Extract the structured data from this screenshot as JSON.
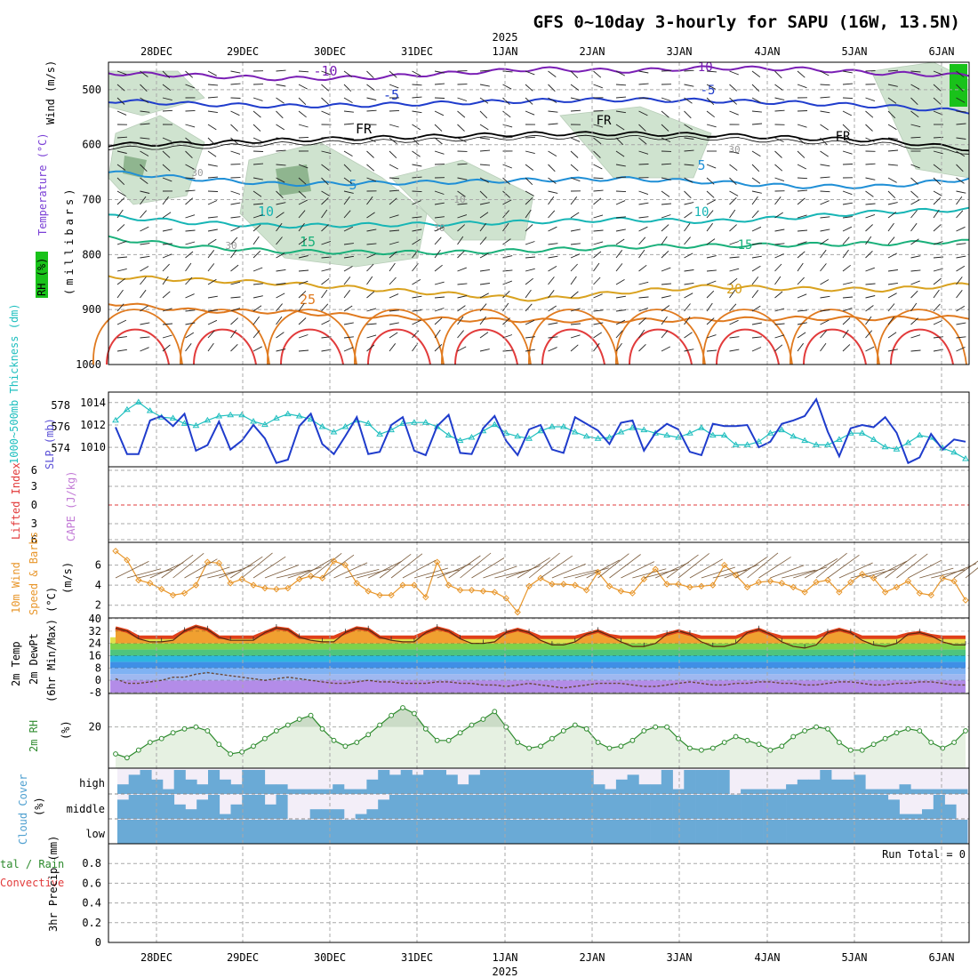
{
  "title": "GFS 0~10day 3-hourly for SAPU (16W, 13.5N)",
  "run_total": "Run Total = 0",
  "colors": {
    "frame": "#000000",
    "grid": "#a8a8a8",
    "rh_fill": "#cfe3cf",
    "rh_dark": "#8fb58f",
    "slp_line": "#1f3ccc",
    "thickness_line": "#1fbfbf",
    "wind_speed": "#e8962a",
    "barb": "#7a5a3a",
    "cape": "#c27ad6",
    "lifted_index": "#e23b3b",
    "rh2m": "#2e8b2e",
    "cloud_fill": "#6aaad6",
    "cloud_bg": "#f3eef8",
    "cloud_mid": "#e6e6e6"
  },
  "time_axis": {
    "top_year": "2025",
    "bottom_year": "2025",
    "date_labels": [
      "28DEC",
      "29DEC",
      "30DEC",
      "31DEC",
      "1JAN",
      "2JAN",
      "3JAN",
      "4JAN",
      "5JAN",
      "6JAN"
    ]
  },
  "panel_labels": {
    "upper_wind": "Wind (m/s)",
    "upper_temp": "Temperature (°C)",
    "upper_rh": "RH (%)",
    "upper_pres": "(millibars)",
    "thickness": "1000~500mb Thickness (dm)",
    "slp": "SLP (mb)",
    "lifted": "Lifted Index",
    "cape": "CAPE (J/kg)",
    "wind10": "10m Wind",
    "wind10b": "Speed & Barbs",
    "wind10u": "(m/s)",
    "t2m_a": "2m Temp",
    "t2m_b": "2m DewPt",
    "t2m_c": "(6hr Min/Max) (°C)",
    "rh2m": "2m RH",
    "rh2m_u": "(%)",
    "cloud": "Cloud Cover",
    "cloud_u": "(%)",
    "precip_a": "tal / Rain",
    "precip_b": "Convective",
    "precip_c": "3hr Precip (mm)"
  },
  "chart_data": [
    {
      "type": "line",
      "title": "Upper-air temperature (°C) and wind (m/s) vs pressure",
      "ylabel": "(millibars)",
      "ylim": [
        1000,
        450
      ],
      "y_ticks": [
        "500",
        "600",
        "700",
        "800",
        "900",
        "1000"
      ],
      "contour_labels": [
        {
          "text": "-10",
          "color": "#7a1fb5"
        },
        {
          "text": "-5",
          "color": "#1f3ccc"
        },
        {
          "text": "FR",
          "color": "#000000"
        },
        {
          "text": "5",
          "color": "#1f8fd6"
        },
        {
          "text": "10",
          "color": "#16b5b5"
        },
        {
          "text": "15",
          "color": "#19b07a"
        },
        {
          "text": "20",
          "color": "#d9a21f"
        },
        {
          "text": "25",
          "color": "#e07a1f"
        }
      ],
      "rh_labels": [
        "30",
        "30",
        "30",
        "10",
        "30"
      ],
      "series": [
        {
          "name": "-10°C",
          "values": [
            470,
            474,
            480,
            478,
            470,
            462,
            466,
            460,
            462,
            470,
            474
          ]
        },
        {
          "name": "-5°C",
          "values": [
            520,
            526,
            530,
            528,
            524,
            520,
            518,
            520,
            524,
            530,
            540
          ]
        },
        {
          "name": "FR",
          "values": [
            600,
            598,
            592,
            588,
            584,
            580,
            580,
            582,
            588,
            592,
            608
          ]
        },
        {
          "name": "5°C",
          "values": [
            650,
            662,
            672,
            670,
            668,
            664,
            662,
            668,
            676,
            676,
            662
          ]
        },
        {
          "name": "10°C",
          "values": [
            730,
            742,
            748,
            746,
            744,
            740,
            736,
            740,
            732,
            722,
            718
          ]
        },
        {
          "name": "15°C",
          "values": [
            770,
            786,
            794,
            796,
            796,
            792,
            786,
            784,
            782,
            780,
            776
          ]
        },
        {
          "name": "20°C",
          "values": [
            840,
            846,
            852,
            862,
            872,
            882,
            868,
            858,
            862,
            864,
            854
          ]
        },
        {
          "name": "25°C",
          "values": [
            888,
            902,
            904,
            912,
            918,
            920,
            920,
            918,
            916,
            916,
            914
          ]
        }
      ]
    },
    {
      "type": "line",
      "title": "1000~500mb Thickness (dm) and SLP (mb)",
      "y_ticks_left": [
        "578",
        "576",
        "574"
      ],
      "y_ticks_right": [
        "1014",
        "1012",
        "1010"
      ],
      "series": [
        {
          "name": "SLP (mb)",
          "values": [
            1011.8,
            1009.4,
            1009.4,
            1012.4,
            1012.8,
            1011.9,
            1013.0,
            1009.7,
            1010.2,
            1012.3,
            1009.8,
            1010.6,
            1012.0,
            1010.8,
            1008.6,
            1008.9,
            1011.9,
            1013.0,
            1010.3,
            1009.4,
            1011.0,
            1012.7,
            1009.4,
            1009.6,
            1012.0,
            1012.7,
            1009.7,
            1009.3,
            1011.9,
            1012.9,
            1009.5,
            1009.4,
            1011.7,
            1012.8,
            1010.6,
            1009.3,
            1011.6,
            1012.0,
            1009.8,
            1009.5,
            1012.7,
            1012.1,
            1011.5,
            1010.3,
            1012.2,
            1012.4,
            1009.7,
            1011.3,
            1012.1,
            1011.6,
            1009.6,
            1009.3,
            1012.1,
            1011.9,
            1011.9,
            1012.0,
            1010.0,
            1010.5,
            1012.1,
            1012.4,
            1012.8,
            1014.3,
            1011.4,
            1009.2,
            1011.7,
            1012.0,
            1011.8,
            1012.7,
            1011.3,
            1008.6,
            1009.1,
            1011.2,
            1009.8,
            1010.7,
            1010.5
          ]
        },
        {
          "name": "1000~500mb Thickness (dm)",
          "values": [
            576.6,
            577.6,
            578.3,
            577.5,
            576.9,
            576.8,
            576.3,
            576.1,
            576.6,
            577.0,
            577.1,
            577.1,
            576.5,
            576.2,
            576.8,
            577.2,
            577.0,
            576.7,
            576.0,
            575.5,
            576.0,
            576.6,
            576.3,
            575.3,
            575.7,
            576.3,
            576.4,
            576.4,
            576.0,
            575.2,
            574.7,
            575.0,
            575.6,
            576.2,
            575.4,
            575.1,
            574.9,
            575.6,
            576.0,
            576.0,
            575.5,
            575.1,
            574.9,
            575.0,
            575.5,
            575.9,
            575.7,
            575.4,
            575.2,
            575.0,
            575.4,
            575.9,
            575.2,
            575.2,
            574.3,
            574.3,
            574.6,
            575.4,
            575.7,
            575.1,
            574.7,
            574.3,
            574.3,
            574.8,
            575.4,
            575.4,
            574.8,
            574.1,
            573.9,
            574.5,
            575.2,
            575.0,
            574.0,
            573.6,
            573.0
          ]
        }
      ]
    },
    {
      "type": "line",
      "title": "Lifted Index / CAPE (J/kg)",
      "y_ticks": [
        "6",
        "3",
        "0",
        "3",
        "6"
      ],
      "series": [
        {
          "name": "Lifted Index",
          "values": []
        },
        {
          "name": "CAPE (J/kg)",
          "values": []
        }
      ]
    },
    {
      "type": "line",
      "title": "10m Wind Speed & Barbs (m/s)",
      "y_ticks": [
        "6",
        "4",
        "2"
      ],
      "series": [
        {
          "name": "10m Wind Speed",
          "values": [
            7.4,
            6.5,
            4.5,
            4.2,
            3.6,
            3.0,
            3.2,
            4.0,
            6.3,
            6.2,
            4.2,
            4.6,
            4.0,
            3.7,
            3.6,
            3.7,
            4.6,
            4.9,
            4.7,
            6.4,
            6.0,
            4.2,
            3.4,
            3.0,
            3.0,
            4.0,
            4.0,
            2.8,
            6.3,
            4.0,
            3.5,
            3.5,
            3.4,
            3.3,
            2.7,
            1.3,
            3.9,
            4.7,
            4.1,
            4.1,
            4.0,
            3.5,
            5.3,
            3.9,
            3.4,
            3.2,
            4.6,
            5.6,
            4.1,
            4.1,
            3.8,
            3.9,
            4.0,
            6.0,
            5.0,
            3.8,
            4.3,
            4.4,
            4.2,
            3.8,
            3.3,
            4.3,
            4.5,
            3.3,
            4.3,
            5.1,
            4.7,
            3.3,
            3.8,
            4.4,
            3.2,
            3.0,
            4.7,
            4.4,
            2.5
          ]
        }
      ]
    },
    {
      "type": "area",
      "title": "2m Temp / 2m DewPt (6hr Min/Max) (°C)",
      "y_ticks": [
        "40",
        "32",
        "24",
        "16",
        "8",
        "0",
        "-8"
      ],
      "series": [
        {
          "name": "2m Temp",
          "values": [
            34,
            32,
            27,
            25,
            25,
            26,
            32,
            35,
            33,
            28,
            26,
            26,
            26,
            31,
            34,
            33,
            28,
            26,
            25,
            25,
            31,
            34,
            33,
            28,
            26,
            25,
            25,
            31,
            34,
            32,
            27,
            24,
            24,
            25,
            31,
            33,
            31,
            26,
            23,
            23,
            25,
            30,
            32,
            29,
            25,
            22,
            22,
            24,
            30,
            32,
            30,
            25,
            22,
            22,
            24,
            31,
            33,
            30,
            25,
            22,
            21,
            23,
            31,
            33,
            31,
            26,
            23,
            22,
            24,
            30,
            31,
            29,
            25,
            23,
            23
          ]
        },
        {
          "name": "2m DewPt",
          "values": [
            1,
            -2,
            -2,
            -1,
            0,
            2,
            2,
            4,
            5,
            4,
            3,
            2,
            1,
            0,
            1,
            2,
            1,
            0,
            -1,
            -2,
            -2,
            -1,
            0,
            -1,
            -1,
            -2,
            -2,
            -2,
            -1,
            -1,
            -2,
            -2,
            -3,
            -3,
            -4,
            -3,
            -2,
            -3,
            -4,
            -5,
            -4,
            -3,
            -2,
            -2,
            -2,
            -3,
            -4,
            -4,
            -3,
            -2,
            -1,
            -2,
            -3,
            -3,
            -2,
            -2,
            -1,
            -1,
            -2,
            -2,
            -3,
            -3,
            -2,
            -1,
            -1,
            -2,
            -3,
            -3,
            -2,
            -2,
            -1,
            -1,
            -2,
            -3,
            -3
          ]
        }
      ]
    },
    {
      "type": "area",
      "title": "2m RH (%)",
      "y_ticks": [
        "20"
      ],
      "series": [
        {
          "name": "2m RH",
          "values": [
            6,
            4,
            8,
            12,
            14,
            17,
            19,
            20,
            18,
            11,
            6,
            7,
            10,
            14,
            18,
            21,
            24,
            26,
            19,
            13,
            10,
            12,
            16,
            21,
            26,
            30,
            27,
            19,
            13,
            13,
            17,
            21,
            24,
            28,
            20,
            12,
            9,
            10,
            14,
            18,
            21,
            19,
            12,
            9,
            10,
            13,
            18,
            20,
            20,
            14,
            9,
            8,
            9,
            12,
            15,
            13,
            11,
            8,
            10,
            15,
            18,
            20,
            19,
            12,
            8,
            8,
            11,
            14,
            17,
            19,
            18,
            12,
            9,
            12,
            18
          ]
        }
      ]
    },
    {
      "type": "bar",
      "title": "Cloud Cover (%)",
      "y_ticks": [
        "high",
        "middle",
        "low"
      ],
      "series": [
        {
          "name": "low",
          "values": [
            100,
            100,
            100,
            100,
            100,
            100,
            100,
            100,
            100,
            100,
            100,
            100,
            100,
            100,
            100,
            100,
            100,
            100,
            100,
            100,
            100,
            100,
            100,
            100,
            100,
            100,
            100,
            100,
            100,
            100,
            100,
            100,
            100,
            100,
            100,
            100,
            100,
            100,
            100,
            100,
            100,
            100,
            100,
            100,
            100,
            100,
            100,
            100,
            100,
            100,
            100,
            100,
            100,
            100,
            100,
            100,
            100,
            100,
            100,
            100,
            100,
            100,
            100,
            100,
            100,
            100,
            100,
            100,
            100,
            100,
            100,
            100,
            100,
            100,
            100
          ]
        },
        {
          "name": "middle",
          "values": [
            80,
            100,
            100,
            100,
            100,
            60,
            40,
            80,
            100,
            20,
            60,
            100,
            100,
            60,
            100,
            0,
            0,
            40,
            40,
            40,
            0,
            20,
            40,
            80,
            100,
            100,
            100,
            100,
            100,
            100,
            100,
            100,
            100,
            100,
            100,
            100,
            100,
            100,
            100,
            100,
            100,
            100,
            100,
            100,
            100,
            100,
            100,
            100,
            100,
            100,
            100,
            100,
            100,
            100,
            100,
            100,
            100,
            100,
            100,
            100,
            100,
            100,
            100,
            100,
            100,
            100,
            100,
            100,
            80,
            20,
            20,
            40,
            100,
            60,
            0
          ]
        },
        {
          "name": "high",
          "values": [
            40,
            80,
            100,
            60,
            20,
            100,
            60,
            40,
            100,
            60,
            40,
            100,
            100,
            40,
            40,
            20,
            20,
            20,
            20,
            40,
            20,
            20,
            60,
            100,
            80,
            100,
            80,
            100,
            100,
            80,
            40,
            80,
            100,
            100,
            100,
            100,
            100,
            100,
            100,
            100,
            100,
            100,
            40,
            20,
            60,
            80,
            40,
            40,
            100,
            20,
            100,
            100,
            100,
            100,
            0,
            20,
            20,
            20,
            20,
            40,
            60,
            60,
            100,
            60,
            60,
            80,
            20,
            20,
            20,
            40,
            20,
            20,
            20,
            20,
            20
          ]
        }
      ]
    },
    {
      "type": "bar",
      "title": "3hr Precip (mm)",
      "ylabel": "3hr Precip (mm)",
      "ylim": [
        0,
        1.0
      ],
      "y_ticks": [
        "0.8",
        "0.6",
        "0.4",
        "0.2",
        "0"
      ],
      "series": [
        {
          "name": "Total / Rain",
          "values": []
        },
        {
          "name": "Convective",
          "values": []
        }
      ]
    }
  ]
}
